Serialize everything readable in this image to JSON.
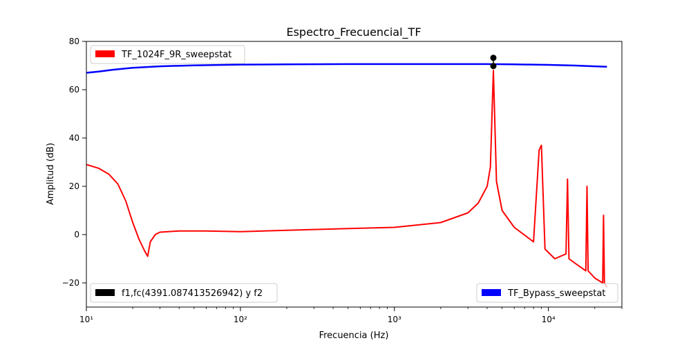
{
  "chart_data": {
    "type": "line",
    "title": "Espectro_Frecuencial_TF",
    "xlabel": "Frecuencia (Hz)",
    "ylabel": "Amplitud (dB)",
    "xscale": "log",
    "xlim": [
      10,
      30000
    ],
    "ylim": [
      -30,
      80
    ],
    "grid": false,
    "x_ticks": [
      10,
      100,
      1000,
      10000
    ],
    "x_tick_labels": [
      "10¹",
      "10²",
      "10³",
      "10⁴"
    ],
    "y_ticks": [
      -20,
      0,
      20,
      40,
      60,
      80
    ],
    "y_tick_labels": [
      "−20",
      "0",
      "20",
      "40",
      "60",
      "80"
    ],
    "series": [
      {
        "name": "TF_Bypass_sweepstat",
        "color": "#0000ff",
        "legend_placement": "lower right",
        "x": [
          10,
          12,
          15,
          20,
          30,
          50,
          100,
          200,
          500,
          1000,
          2000,
          4000,
          6000,
          10000,
          15000,
          20000,
          24000
        ],
        "y": [
          67,
          67.5,
          68.3,
          69.1,
          69.7,
          70.1,
          70.4,
          70.5,
          70.6,
          70.6,
          70.6,
          70.6,
          70.5,
          70.3,
          70.0,
          69.7,
          69.5
        ]
      },
      {
        "name": "TF_1024F_9R_sweepstat",
        "color": "#ff0000",
        "legend_placement": "upper left",
        "x": [
          10,
          12,
          14,
          16,
          18,
          20,
          22,
          24,
          25,
          26,
          28,
          30,
          40,
          60,
          100,
          200,
          500,
          1000,
          2000,
          3000,
          3500,
          4000,
          4200,
          4391,
          4600,
          5000,
          6000,
          8000,
          8700,
          9000,
          9500,
          11000,
          13000,
          13300,
          13600,
          15000,
          17500,
          17800,
          18100,
          20000,
          22500,
          22800,
          23100,
          24000
        ],
        "y": [
          29,
          27.5,
          25,
          21,
          14,
          5,
          -2,
          -7,
          -9,
          -3,
          0,
          1,
          1.5,
          1.5,
          1.2,
          1.8,
          2.5,
          3,
          5,
          9,
          13,
          20,
          28,
          68,
          22,
          10,
          3,
          -3,
          35,
          37,
          -6,
          -10,
          -8,
          23,
          -10,
          -12,
          -15,
          20,
          -15,
          -18,
          -20,
          8,
          -20,
          -22
        ]
      }
    ],
    "markers": {
      "legend_label": "f1,fc(4391.087413526942) y f2",
      "legend_placement": "lower left",
      "color": "#000000",
      "points": [
        {
          "x": 4391,
          "y": 73.2
        },
        {
          "x": 4391,
          "y": 69.8
        }
      ]
    }
  }
}
